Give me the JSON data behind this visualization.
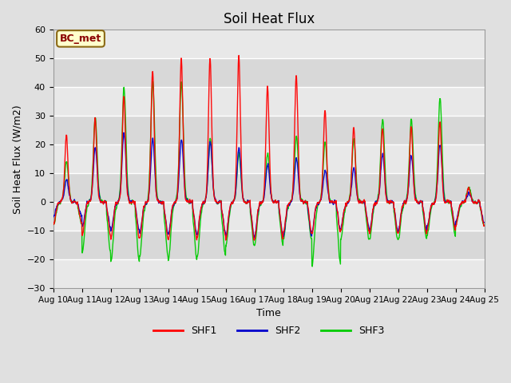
{
  "title": "Soil Heat Flux",
  "ylabel": "Soil Heat Flux (W/m2)",
  "xlabel": "Time",
  "legend_label": "BC_met",
  "series_labels": [
    "SHF1",
    "SHF2",
    "SHF3"
  ],
  "series_colors": [
    "#ff0000",
    "#0000cc",
    "#00cc00"
  ],
  "ylim": [
    -30,
    60
  ],
  "yticks": [
    -30,
    -20,
    -10,
    0,
    10,
    20,
    30,
    40,
    50,
    60
  ],
  "n_days": 15,
  "start_day": 10,
  "points_per_day": 144,
  "title_fontsize": 12,
  "axis_fontsize": 9,
  "legend_fontsize": 9,
  "day_peaks_shf1": [
    23,
    29,
    37,
    46,
    50,
    50,
    51,
    40,
    44,
    32,
    26,
    26,
    26,
    28,
    5
  ],
  "day_peaks_shf2": [
    8,
    19,
    24,
    22,
    22,
    21,
    19,
    13,
    15,
    11,
    12,
    17,
    16,
    20,
    3
  ],
  "day_peaks_shf3": [
    14,
    29,
    40,
    42,
    42,
    22,
    17,
    17,
    23,
    21,
    22,
    29,
    29,
    36,
    5
  ],
  "day_nights_shf1": [
    -8,
    -12,
    -13,
    -13,
    -13,
    -12,
    -13,
    -13,
    -11,
    -11,
    -10,
    -11,
    -11,
    -10,
    -8
  ],
  "day_nights_shf2": [
    -5,
    -9,
    -10,
    -11,
    -11,
    -11,
    -12,
    -12,
    -12,
    -10,
    -9,
    -10,
    -10,
    -9,
    -7
  ],
  "day_nights_shf3": [
    -8,
    -18,
    -21,
    -19,
    -20,
    -19,
    -15,
    -15,
    -13,
    -22,
    -13,
    -13,
    -13,
    -12,
    -8
  ]
}
